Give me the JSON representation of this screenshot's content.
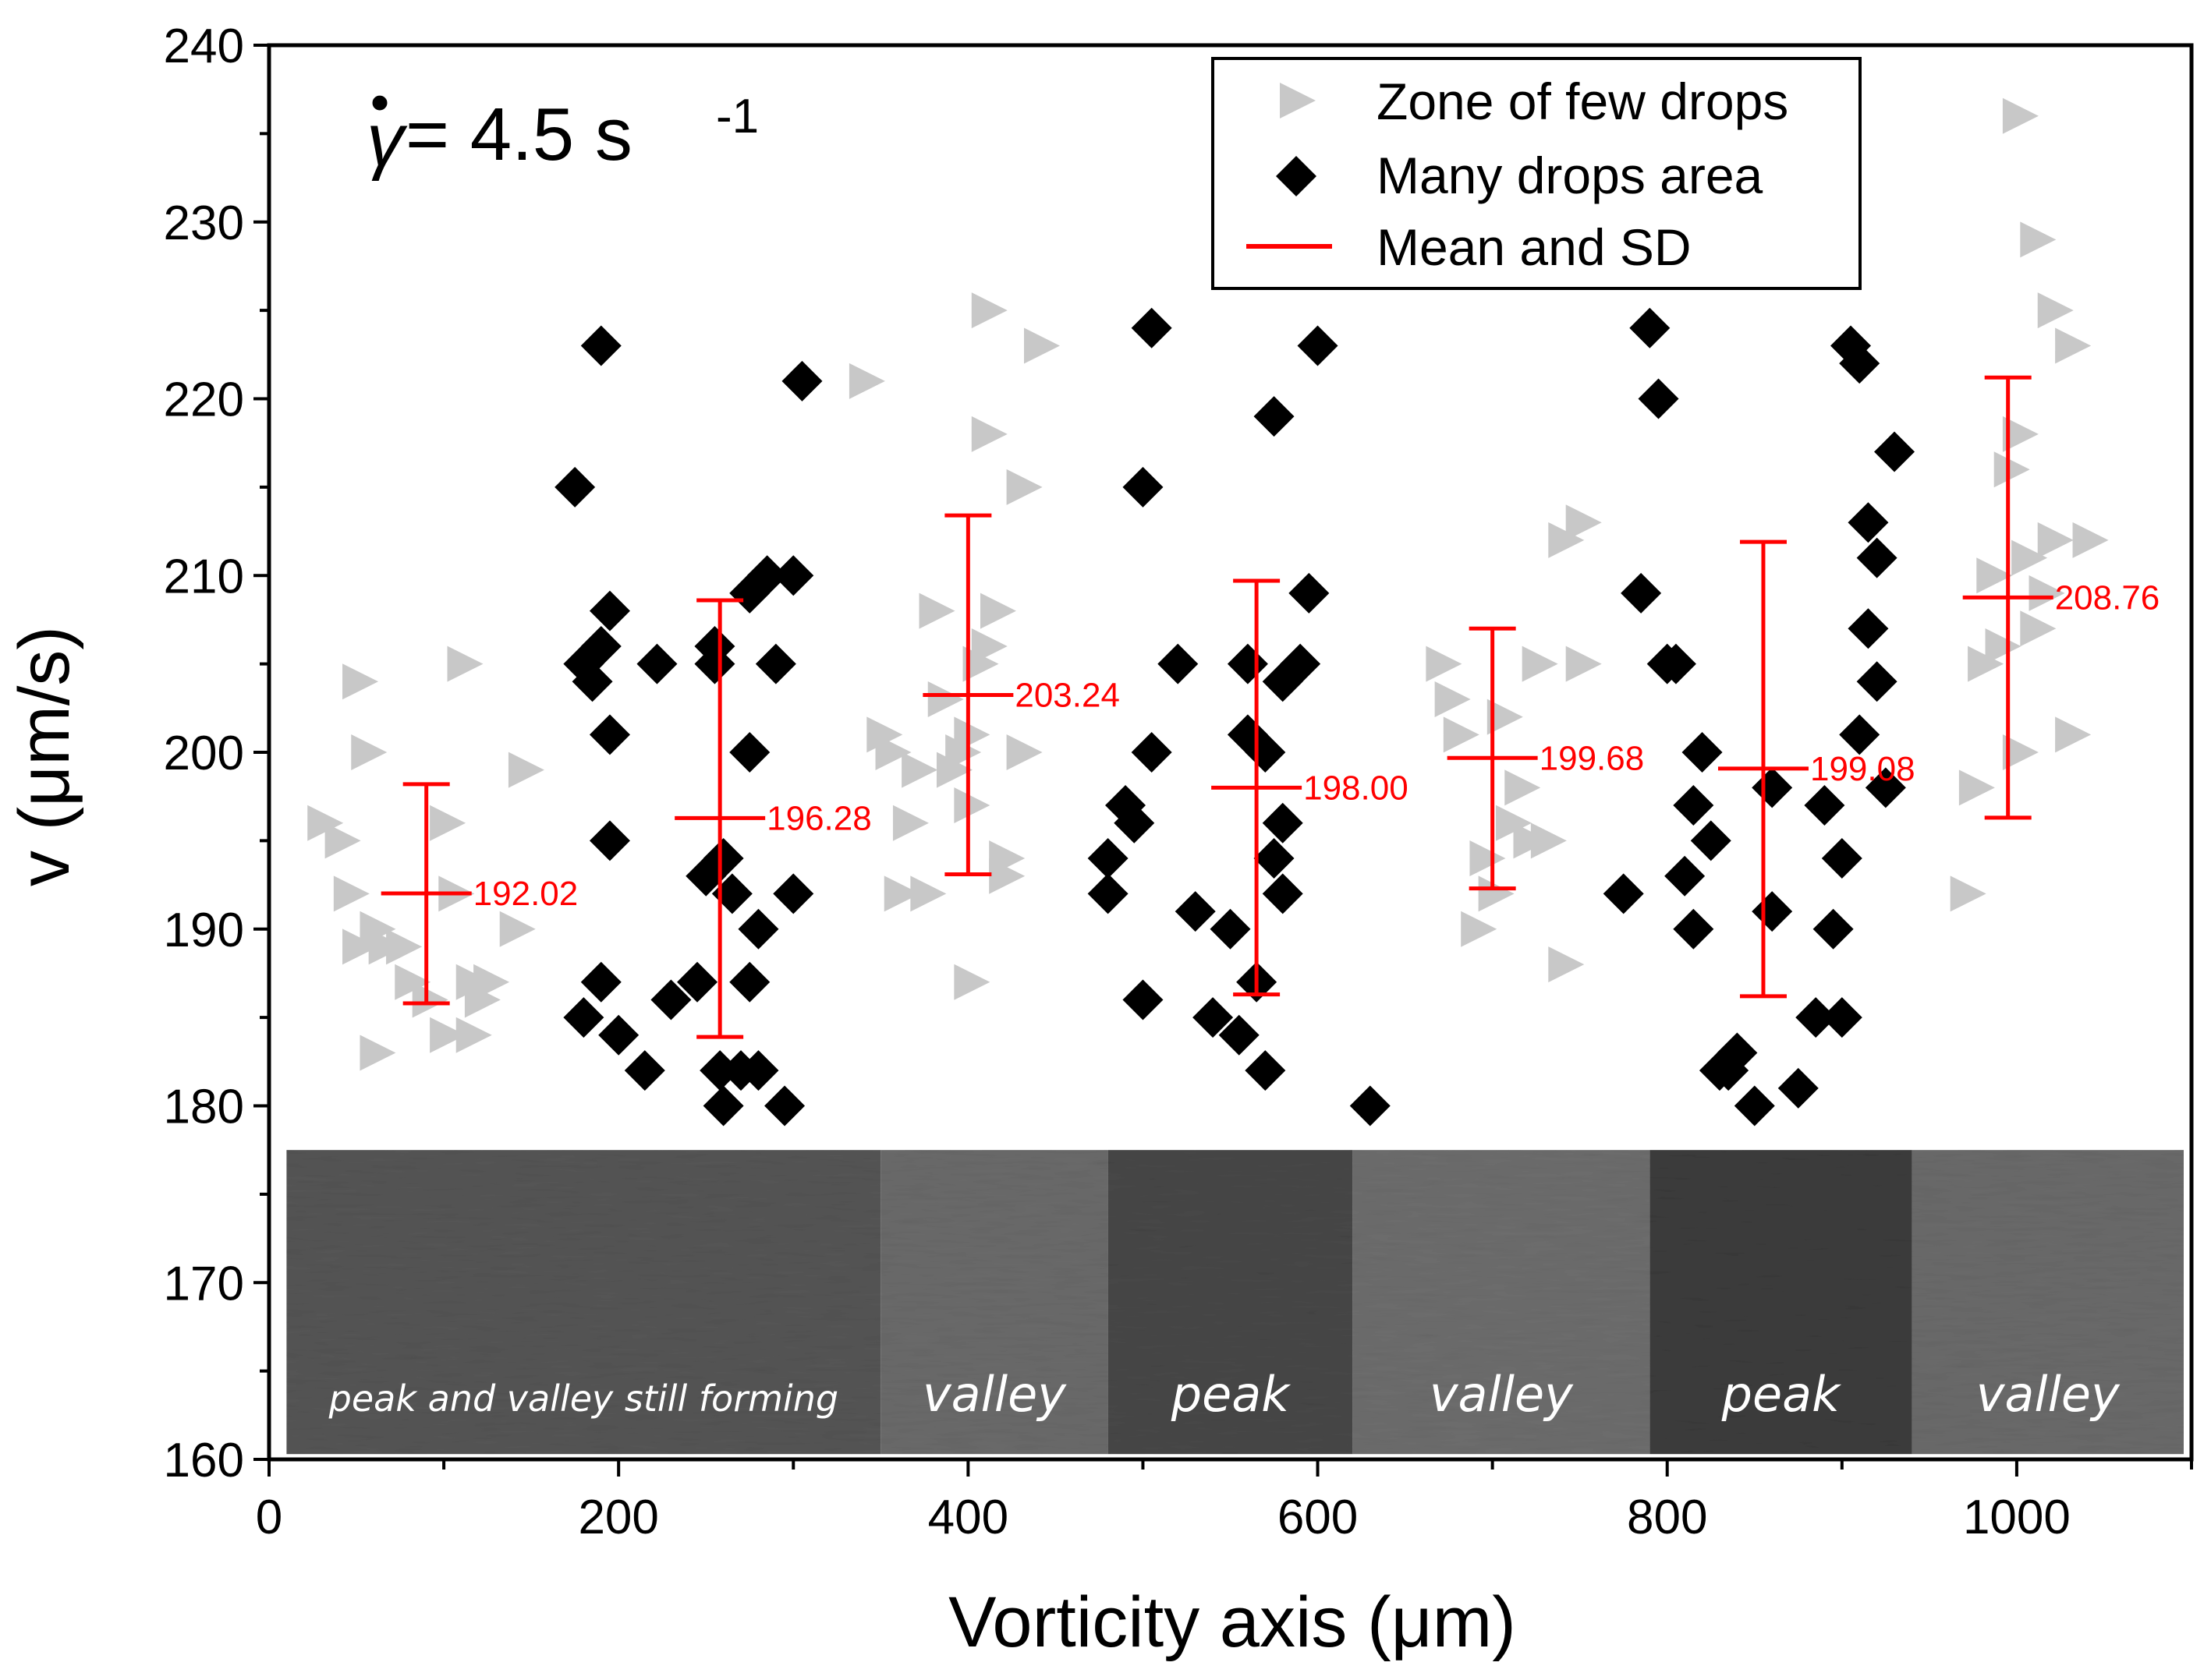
{
  "chart_data": {
    "type": "scatter",
    "annotation": {
      "symbol": "γ",
      "rate": " = 4.5 s",
      "exponent": "-1"
    },
    "xlabel": "Vorticity axis (μm)",
    "ylabel": "v (μm/s)",
    "xlim": [
      0,
      1100
    ],
    "ylim": [
      160,
      240
    ],
    "x_ticks": [
      0,
      200,
      400,
      600,
      800,
      1000
    ],
    "y_ticks": [
      160,
      170,
      180,
      190,
      200,
      210,
      220,
      230,
      240
    ],
    "legend": {
      "position": "top-right",
      "items": [
        {
          "label": "Zone of few drops",
          "marker": "triangle-right",
          "color": "#c8c8c8"
        },
        {
          "label": "Many drops area",
          "marker": "diamond",
          "color": "#000000"
        },
        {
          "label": "Mean and SD",
          "marker": "line",
          "color": "#ff0000"
        }
      ]
    },
    "series": [
      {
        "name": "Zone of few drops",
        "marker": "triangle-right",
        "color": "#c8c8c8",
        "points": [
          [
            30,
            196
          ],
          [
            40,
            195
          ],
          [
            45,
            192
          ],
          [
            50,
            204
          ],
          [
            55,
            200
          ],
          [
            50,
            189
          ],
          [
            60,
            190
          ],
          [
            60,
            183
          ],
          [
            65,
            189
          ],
          [
            75,
            189
          ],
          [
            80,
            187
          ],
          [
            90,
            186
          ],
          [
            100,
            184
          ],
          [
            100,
            196
          ],
          [
            105,
            192
          ],
          [
            110,
            205
          ],
          [
            115,
            187
          ],
          [
            115,
            184
          ],
          [
            120,
            186
          ],
          [
            125,
            187
          ],
          [
            140,
            190
          ],
          [
            145,
            199
          ],
          [
            340,
            221
          ],
          [
            350,
            201
          ],
          [
            355,
            200
          ],
          [
            360,
            192
          ],
          [
            365,
            196
          ],
          [
            370,
            199
          ],
          [
            375,
            192
          ],
          [
            380,
            208
          ],
          [
            385,
            203
          ],
          [
            390,
            199
          ],
          [
            395,
            200
          ],
          [
            400,
            201
          ],
          [
            405,
            205
          ],
          [
            400,
            197
          ],
          [
            400,
            187
          ],
          [
            410,
            206
          ],
          [
            410,
            225
          ],
          [
            410,
            218
          ],
          [
            415,
            208
          ],
          [
            420,
            193
          ],
          [
            430,
            215
          ],
          [
            430,
            200
          ],
          [
            440,
            223
          ],
          [
            420,
            194
          ],
          [
            670,
            205
          ],
          [
            675,
            203
          ],
          [
            680,
            201
          ],
          [
            690,
            190
          ],
          [
            695,
            194
          ],
          [
            700,
            192
          ],
          [
            705,
            202
          ],
          [
            710,
            196
          ],
          [
            715,
            198
          ],
          [
            720,
            195
          ],
          [
            725,
            205
          ],
          [
            730,
            195
          ],
          [
            740,
            188
          ],
          [
            740,
            212
          ],
          [
            750,
            213
          ],
          [
            750,
            205
          ],
          [
            970,
            192
          ],
          [
            975,
            198
          ],
          [
            980,
            205
          ],
          [
            985,
            210
          ],
          [
            990,
            206
          ],
          [
            995,
            216
          ],
          [
            1000,
            218
          ],
          [
            1000,
            200
          ],
          [
            1005,
            211
          ],
          [
            1010,
            207
          ],
          [
            1015,
            209
          ],
          [
            1020,
            212
          ],
          [
            1020,
            225
          ],
          [
            1030,
            223
          ],
          [
            1030,
            201
          ],
          [
            1040,
            212
          ],
          [
            1000,
            236
          ],
          [
            1010,
            229
          ]
        ]
      },
      {
        "name": "Many drops area",
        "marker": "diamond",
        "color": "#000000",
        "points": [
          [
            175,
            215
          ],
          [
            180,
            205
          ],
          [
            180,
            185
          ],
          [
            185,
            204
          ],
          [
            190,
            206
          ],
          [
            190,
            187
          ],
          [
            190,
            223
          ],
          [
            195,
            208
          ],
          [
            195,
            201
          ],
          [
            195,
            195
          ],
          [
            200,
            184
          ],
          [
            215,
            182
          ],
          [
            222,
            205
          ],
          [
            230,
            186
          ],
          [
            245,
            187
          ],
          [
            250,
            193
          ],
          [
            255,
            206
          ],
          [
            255,
            205
          ],
          [
            258,
            182
          ],
          [
            260,
            180
          ],
          [
            260,
            194
          ],
          [
            265,
            192
          ],
          [
            270,
            182
          ],
          [
            275,
            209
          ],
          [
            275,
            187
          ],
          [
            275,
            200
          ],
          [
            280,
            190
          ],
          [
            280,
            182
          ],
          [
            285,
            210
          ],
          [
            290,
            205
          ],
          [
            295,
            180
          ],
          [
            300,
            192
          ],
          [
            300,
            210
          ],
          [
            305,
            221
          ],
          [
            480,
            194
          ],
          [
            480,
            192
          ],
          [
            490,
            197
          ],
          [
            495,
            196
          ],
          [
            500,
            215
          ],
          [
            500,
            186
          ],
          [
            505,
            224
          ],
          [
            505,
            200
          ],
          [
            520,
            205
          ],
          [
            530,
            191
          ],
          [
            540,
            185
          ],
          [
            550,
            190
          ],
          [
            555,
            184
          ],
          [
            560,
            201
          ],
          [
            560,
            205
          ],
          [
            565,
            187
          ],
          [
            570,
            182
          ],
          [
            570,
            200
          ],
          [
            575,
            194
          ],
          [
            575,
            219
          ],
          [
            580,
            196
          ],
          [
            580,
            192
          ],
          [
            580,
            204
          ],
          [
            590,
            205
          ],
          [
            595,
            209
          ],
          [
            600,
            223
          ],
          [
            630,
            180
          ],
          [
            775,
            192
          ],
          [
            785,
            209
          ],
          [
            790,
            224
          ],
          [
            795,
            220
          ],
          [
            800,
            205
          ],
          [
            805,
            205
          ],
          [
            810,
            193
          ],
          [
            815,
            197
          ],
          [
            815,
            190
          ],
          [
            820,
            200
          ],
          [
            825,
            195
          ],
          [
            830,
            182
          ],
          [
            835,
            182
          ],
          [
            840,
            183
          ],
          [
            850,
            180
          ],
          [
            860,
            198
          ],
          [
            860,
            191
          ],
          [
            875,
            181
          ],
          [
            885,
            185
          ],
          [
            890,
            197
          ],
          [
            895,
            190
          ],
          [
            900,
            185
          ],
          [
            900,
            194
          ],
          [
            905,
            223
          ],
          [
            910,
            222
          ],
          [
            910,
            201
          ],
          [
            915,
            213
          ],
          [
            915,
            207
          ],
          [
            920,
            204
          ],
          [
            920,
            211
          ],
          [
            925,
            198
          ],
          [
            930,
            217
          ]
        ]
      }
    ],
    "mean_sd": [
      {
        "x": 90,
        "mean": 192.02,
        "sd_low": 185.8,
        "sd_high": 198.2,
        "label": "192.02"
      },
      {
        "x": 258,
        "mean": 196.28,
        "sd_low": 183.9,
        "sd_high": 208.6,
        "label": "196.28"
      },
      {
        "x": 400,
        "mean": 203.24,
        "sd_low": 193.1,
        "sd_high": 213.4,
        "label": "203.24"
      },
      {
        "x": 565,
        "mean": 198.0,
        "sd_low": 186.3,
        "sd_high": 209.7,
        "label": "198.00"
      },
      {
        "x": 700,
        "mean": 199.68,
        "sd_low": 192.3,
        "sd_high": 207.0,
        "label": "199.68"
      },
      {
        "x": 855,
        "mean": 199.08,
        "sd_low": 186.2,
        "sd_high": 211.9,
        "label": "199.08"
      },
      {
        "x": 995,
        "mean": 208.76,
        "sd_low": 196.3,
        "sd_high": 221.2,
        "label": "208.76"
      }
    ],
    "band": {
      "x_range": [
        10,
        1100
      ],
      "y_range": [
        160.3,
        177.5
      ],
      "segments": [
        {
          "x0": 10,
          "x1": 350,
          "label": "peak and valley still forming",
          "shade": "#555555"
        },
        {
          "x0": 350,
          "x1": 480,
          "label": "valley",
          "shade": "#6a6a6a"
        },
        {
          "x0": 480,
          "x1": 620,
          "label": "peak",
          "shade": "#474747"
        },
        {
          "x0": 620,
          "x1": 790,
          "label": "valley",
          "shade": "#6d6d6d"
        },
        {
          "x0": 790,
          "x1": 940,
          "label": "peak",
          "shade": "#3c3c3c"
        },
        {
          "x0": 940,
          "x1": 1100,
          "label": "valley",
          "shade": "#6a6a6a"
        }
      ]
    }
  }
}
